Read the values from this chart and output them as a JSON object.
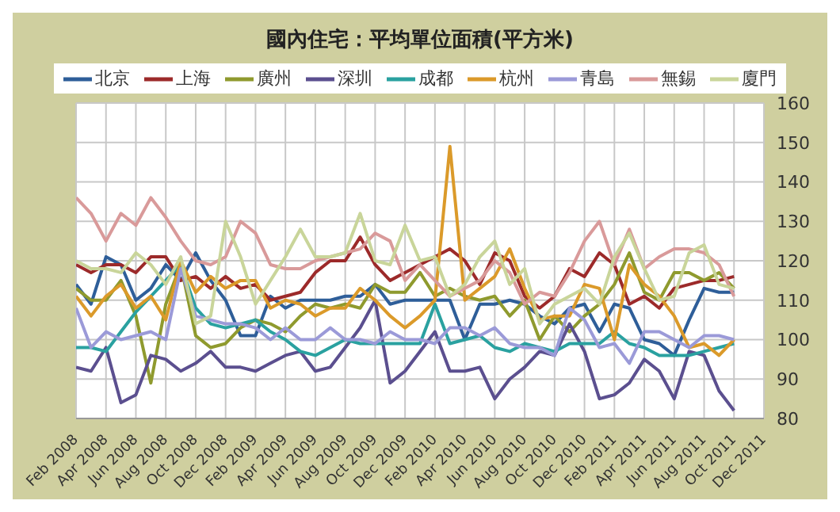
{
  "chart_data": {
    "type": "line",
    "title": "國內住宅：平均單位面積(平方米)",
    "x": [
      "2008-02",
      "2008-03",
      "2008-04",
      "2008-05",
      "2008-06",
      "2008-07",
      "2008-08",
      "2008-09",
      "2008-10",
      "2008-11",
      "2008-12",
      "2009-01",
      "2009-02",
      "2009-03",
      "2009-04",
      "2009-05",
      "2009-06",
      "2009-07",
      "2009-08",
      "2009-09",
      "2009-10",
      "2009-11",
      "2009-12",
      "2010-01",
      "2010-02",
      "2010-03",
      "2010-04",
      "2010-05",
      "2010-06",
      "2010-07",
      "2010-08",
      "2010-09",
      "2010-10",
      "2010-11",
      "2010-12",
      "2011-01",
      "2011-02",
      "2011-03",
      "2011-04",
      "2011-05",
      "2011-06",
      "2011-07",
      "2011-08",
      "2011-09",
      "2011-10"
    ],
    "series": [
      {
        "name": "北京",
        "color": "#2e5e99",
        "values": [
          114,
          109,
          121,
          119,
          110,
          113,
          119,
          115,
          122,
          115,
          110,
          101,
          101,
          111,
          108,
          110,
          110,
          110,
          111,
          111,
          114,
          109,
          110,
          110,
          110,
          110,
          100,
          109,
          109,
          110,
          109,
          106,
          104,
          108,
          109,
          102,
          109,
          108,
          100,
          99,
          96,
          105,
          113,
          112,
          112
        ]
      },
      {
        "name": "上海",
        "color": "#9c2a2a",
        "values": [
          119,
          117,
          119,
          119,
          117,
          121,
          121,
          115,
          116,
          113,
          116,
          113,
          114,
          110,
          111,
          112,
          117,
          120,
          120,
          126,
          119,
          115,
          117,
          119,
          121,
          123,
          120,
          114,
          122,
          120,
          111,
          108,
          111,
          118,
          116,
          122,
          119,
          109,
          111,
          108,
          113,
          114,
          115,
          115,
          116
        ]
      },
      {
        "name": "廣州",
        "color": "#8f9a2e",
        "values": [
          113,
          110,
          110,
          115,
          106,
          89,
          109,
          119,
          101,
          98,
          99,
          103,
          105,
          104,
          102,
          106,
          109,
          108,
          109,
          108,
          114,
          112,
          112,
          117,
          111,
          113,
          111,
          110,
          111,
          106,
          110,
          100,
          106,
          102,
          106,
          109,
          114,
          122,
          112,
          110,
          117,
          117,
          115,
          117,
          113
        ]
      },
      {
        "name": "深圳",
        "color": "#5b4f8f",
        "values": [
          93,
          92,
          98,
          84,
          86,
          96,
          95,
          92,
          94,
          97,
          93,
          93,
          92,
          94,
          96,
          97,
          92,
          93,
          98,
          103,
          110,
          89,
          92,
          97,
          102,
          92,
          92,
          93,
          85,
          90,
          93,
          97,
          96,
          104,
          97,
          85,
          86,
          89,
          95,
          92,
          85,
          97,
          96,
          87,
          82
        ]
      },
      {
        "name": "成都",
        "color": "#2aa1a0",
        "values": [
          98,
          98,
          97,
          102,
          107,
          111,
          115,
          119,
          108,
          104,
          103,
          104,
          105,
          102,
          100,
          97,
          96,
          98,
          100,
          99,
          99,
          99,
          99,
          99,
          109,
          99,
          100,
          101,
          98,
          97,
          99,
          98,
          97,
          99,
          99,
          99,
          102,
          99,
          98,
          96,
          96,
          96,
          97,
          98,
          99
        ]
      },
      {
        "name": "杭州",
        "color": "#db9a2a",
        "values": [
          111,
          106,
          111,
          114,
          108,
          111,
          105,
          120,
          112,
          116,
          113,
          115,
          115,
          108,
          110,
          109,
          106,
          108,
          108,
          113,
          110,
          106,
          103,
          106,
          110,
          149,
          110,
          113,
          116,
          123,
          113,
          105,
          106,
          106,
          114,
          113,
          100,
          119,
          114,
          111,
          106,
          98,
          99,
          96,
          100
        ]
      },
      {
        "name": "青島",
        "color": "#9b9ad8",
        "values": [
          108,
          98,
          102,
          100,
          101,
          102,
          100,
          118,
          106,
          105,
          104,
          104,
          103,
          100,
          103,
          100,
          100,
          103,
          100,
          100,
          99,
          102,
          100,
          100,
          99,
          103,
          103,
          101,
          103,
          99,
          98,
          98,
          96,
          108,
          105,
          98,
          99,
          94,
          102,
          102,
          100,
          98,
          101,
          101,
          100
        ]
      },
      {
        "name": "無錫",
        "color": "#d99a9a",
        "values": [
          136,
          132,
          125,
          132,
          129,
          136,
          131,
          125,
          120,
          119,
          121,
          130,
          127,
          119,
          118,
          118,
          120,
          121,
          122,
          123,
          127,
          125,
          115,
          119,
          115,
          111,
          113,
          115,
          120,
          117,
          109,
          112,
          111,
          117,
          125,
          130,
          119,
          128,
          118,
          121,
          123,
          123,
          122,
          119,
          111
        ]
      },
      {
        "name": "廈門",
        "color": "#c9d59a",
        "values": [
          120,
          118,
          118,
          117,
          122,
          119,
          114,
          121,
          104,
          106,
          130,
          121,
          109,
          115,
          121,
          128,
          121,
          121,
          122,
          132,
          120,
          119,
          129,
          120,
          121,
          111,
          114,
          121,
          125,
          114,
          118,
          104,
          109,
          111,
          113,
          109,
          121,
          127,
          118,
          110,
          111,
          122,
          124,
          114,
          113
        ]
      }
    ],
    "xlim": [
      "2008-02",
      "2011-12"
    ],
    "xticks": [
      {
        "value": "2008-02",
        "label": "Feb 2008"
      },
      {
        "value": "2008-04",
        "label": "Apr 2008"
      },
      {
        "value": "2008-06",
        "label": "Jun 2008"
      },
      {
        "value": "2008-08",
        "label": "Aug 2008"
      },
      {
        "value": "2008-10",
        "label": "Oct 2008"
      },
      {
        "value": "2008-12",
        "label": "Dec 2008"
      },
      {
        "value": "2009-02",
        "label": "Feb 2009"
      },
      {
        "value": "2009-04",
        "label": "Apr 2009"
      },
      {
        "value": "2009-06",
        "label": "Jun 2009"
      },
      {
        "value": "2009-08",
        "label": "Aug 2009"
      },
      {
        "value": "2009-10",
        "label": "Oct 2009"
      },
      {
        "value": "2009-12",
        "label": "Dec 2009"
      },
      {
        "value": "2010-02",
        "label": "Feb 2010"
      },
      {
        "value": "2010-04",
        "label": "Apr 2010"
      },
      {
        "value": "2010-06",
        "label": "Jun 2010"
      },
      {
        "value": "2010-08",
        "label": "Aug 2010"
      },
      {
        "value": "2010-10",
        "label": "Oct 2010"
      },
      {
        "value": "2010-12",
        "label": "Dec 2010"
      },
      {
        "value": "2011-02",
        "label": "Feb 2011"
      },
      {
        "value": "2011-04",
        "label": "Apr 2011"
      },
      {
        "value": "2011-06",
        "label": "Jun 2011"
      },
      {
        "value": "2011-08",
        "label": "Aug 2011"
      },
      {
        "value": "2011-10",
        "label": "Oct 2011"
      },
      {
        "value": "2011-12",
        "label": "Dec 2011"
      }
    ],
    "ylim": [
      80,
      160
    ],
    "yticks": [
      80,
      90,
      100,
      110,
      120,
      130,
      140,
      150,
      160
    ],
    "grid": true,
    "legend": "top"
  }
}
